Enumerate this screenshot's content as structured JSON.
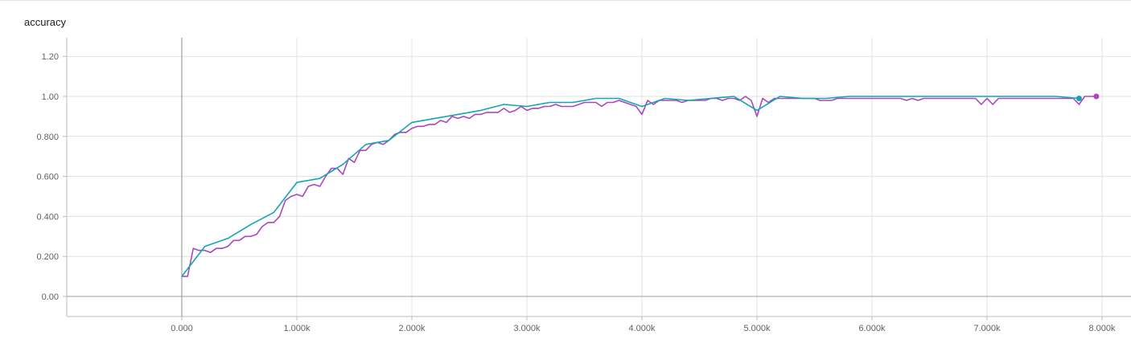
{
  "card": {
    "title": "accuracy"
  },
  "chart_data": {
    "type": "line",
    "title": "accuracy",
    "xlabel": "",
    "ylabel": "",
    "xlim": [
      -1000,
      8000
    ],
    "ylim": [
      -0.1,
      1.3
    ],
    "grid": true,
    "x_tick_labels": [
      "0.000",
      "1.000k",
      "2.000k",
      "3.000k",
      "4.000k",
      "5.000k",
      "6.000k",
      "7.000k",
      "8.000k"
    ],
    "y_tick_labels": [
      "0.00",
      "0.200",
      "0.400",
      "0.600",
      "0.800",
      "1.00",
      "1.20"
    ],
    "series": [
      {
        "color": "#ab47bc",
        "x": [
          0,
          50,
          100,
          150,
          200,
          250,
          300,
          350,
          400,
          450,
          500,
          550,
          600,
          650,
          700,
          750,
          800,
          850,
          900,
          950,
          1000,
          1050,
          1100,
          1150,
          1200,
          1250,
          1300,
          1350,
          1400,
          1450,
          1500,
          1550,
          1600,
          1650,
          1700,
          1750,
          1800,
          1850,
          1900,
          1950,
          2000,
          2050,
          2100,
          2150,
          2200,
          2250,
          2300,
          2350,
          2400,
          2450,
          2500,
          2550,
          2600,
          2650,
          2700,
          2750,
          2800,
          2850,
          2900,
          2950,
          3000,
          3050,
          3100,
          3150,
          3200,
          3250,
          3300,
          3350,
          3400,
          3450,
          3500,
          3550,
          3600,
          3650,
          3700,
          3750,
          3800,
          3850,
          3900,
          3950,
          4000,
          4050,
          4100,
          4150,
          4200,
          4250,
          4300,
          4350,
          4400,
          4450,
          4500,
          4550,
          4600,
          4650,
          4700,
          4750,
          4800,
          4850,
          4900,
          4950,
          5000,
          5050,
          5100,
          5150,
          5200,
          5250,
          5300,
          5350,
          5400,
          5450,
          5500,
          5550,
          5600,
          5650,
          5700,
          5750,
          5800,
          5850,
          5900,
          5950,
          6000,
          6050,
          6100,
          6150,
          6200,
          6250,
          6300,
          6350,
          6400,
          6450,
          6500,
          6550,
          6600,
          6650,
          6700,
          6750,
          6800,
          6850,
          6900,
          6950,
          7000,
          7050,
          7100,
          7150,
          7200,
          7250,
          7300,
          7350,
          7400,
          7450,
          7500,
          7550,
          7600,
          7650,
          7700,
          7750,
          7800,
          7850,
          7900,
          7950
        ],
        "y": [
          0.1,
          0.1,
          0.24,
          0.23,
          0.23,
          0.22,
          0.24,
          0.24,
          0.25,
          0.28,
          0.28,
          0.3,
          0.3,
          0.31,
          0.35,
          0.37,
          0.37,
          0.4,
          0.48,
          0.5,
          0.51,
          0.5,
          0.55,
          0.56,
          0.55,
          0.6,
          0.64,
          0.64,
          0.61,
          0.69,
          0.67,
          0.73,
          0.73,
          0.76,
          0.77,
          0.76,
          0.78,
          0.81,
          0.82,
          0.82,
          0.84,
          0.85,
          0.85,
          0.86,
          0.86,
          0.88,
          0.87,
          0.9,
          0.89,
          0.9,
          0.89,
          0.91,
          0.91,
          0.92,
          0.92,
          0.92,
          0.94,
          0.92,
          0.93,
          0.95,
          0.93,
          0.94,
          0.94,
          0.95,
          0.95,
          0.96,
          0.95,
          0.95,
          0.95,
          0.96,
          0.97,
          0.97,
          0.97,
          0.95,
          0.97,
          0.97,
          0.98,
          0.97,
          0.96,
          0.95,
          0.91,
          0.98,
          0.96,
          0.98,
          0.98,
          0.98,
          0.98,
          0.97,
          0.98,
          0.98,
          0.98,
          0.98,
          0.99,
          0.99,
          0.98,
          0.99,
          0.99,
          0.98,
          1.0,
          0.98,
          0.9,
          0.99,
          0.97,
          0.99,
          0.99,
          0.99,
          0.99,
          0.99,
          0.99,
          0.99,
          0.99,
          0.98,
          0.98,
          0.98,
          0.99,
          0.99,
          0.99,
          0.99,
          0.99,
          0.99,
          0.99,
          0.99,
          0.99,
          0.99,
          0.99,
          0.99,
          0.98,
          0.99,
          0.98,
          0.99,
          0.99,
          0.99,
          0.99,
          0.99,
          0.99,
          0.99,
          0.99,
          0.99,
          0.99,
          0.96,
          0.99,
          0.96,
          0.99,
          0.99,
          0.99,
          0.99,
          0.99,
          0.99,
          0.99,
          0.99,
          0.99,
          0.99,
          0.99,
          0.99,
          0.99,
          0.99,
          0.96,
          1.0,
          1.0,
          1.0
        ]
      },
      {
        "color": "#12a4b7",
        "x": [
          0,
          200,
          400,
          600,
          800,
          1000,
          1200,
          1400,
          1600,
          1800,
          2000,
          2200,
          2400,
          2600,
          2800,
          3000,
          3200,
          3400,
          3600,
          3800,
          4000,
          4200,
          4400,
          4600,
          4800,
          5000,
          5200,
          5400,
          5600,
          5800,
          6000,
          6200,
          6400,
          6600,
          6800,
          7000,
          7200,
          7400,
          7600,
          7800
        ],
        "y": [
          0.1,
          0.25,
          0.29,
          0.36,
          0.42,
          0.57,
          0.59,
          0.66,
          0.76,
          0.78,
          0.87,
          0.89,
          0.91,
          0.93,
          0.96,
          0.95,
          0.97,
          0.97,
          0.99,
          0.99,
          0.95,
          0.99,
          0.98,
          0.99,
          1.0,
          0.93,
          1.0,
          0.99,
          0.99,
          1.0,
          1.0,
          1.0,
          1.0,
          1.0,
          1.0,
          1.0,
          1.0,
          1.0,
          1.0,
          0.99
        ]
      }
    ]
  }
}
